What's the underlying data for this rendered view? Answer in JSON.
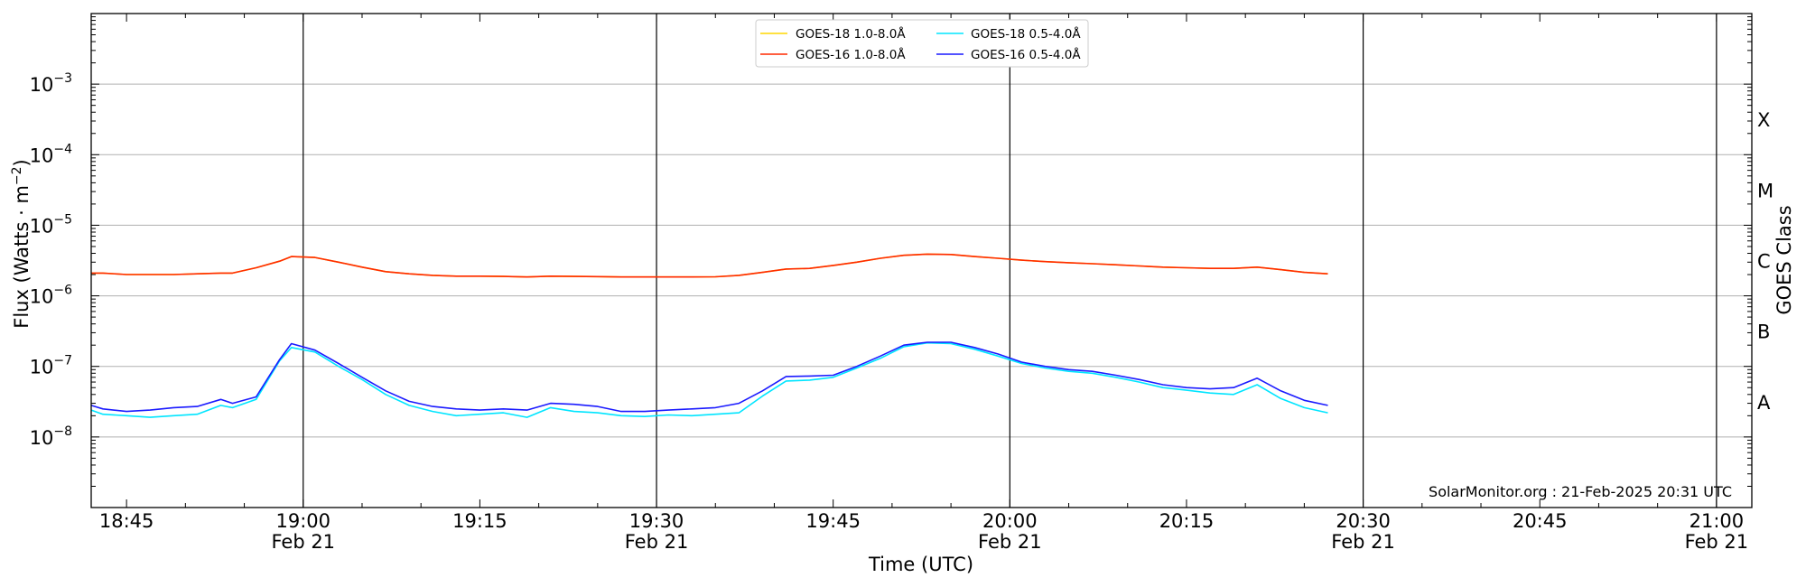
{
  "chart_data": {
    "type": "line",
    "xlabel": "Time (UTC)",
    "ylabel_main": "Flux (Watts · m",
    "ylabel_sup": "−2",
    "ylabel_close": ")",
    "right_label": "GOES Class",
    "credit": "SolarMonitor.org : 21-Feb-2025 20:31 UTC",
    "yscale": "log",
    "ylim": [
      1e-09,
      0.01
    ],
    "xlim": [
      "2025-02-21 18:42",
      "2025-02-21 21:03"
    ],
    "grid": "horizontal at decades, vertical at half-hours",
    "legend_position": "top-center",
    "x_ticks": [
      {
        "t": "2025-02-21 18:45",
        "line1": "18:45",
        "line2": ""
      },
      {
        "t": "2025-02-21 19:00",
        "line1": "19:00",
        "line2": "Feb 21"
      },
      {
        "t": "2025-02-21 19:15",
        "line1": "19:15",
        "line2": ""
      },
      {
        "t": "2025-02-21 19:30",
        "line1": "19:30",
        "line2": "Feb 21"
      },
      {
        "t": "2025-02-21 19:45",
        "line1": "19:45",
        "line2": ""
      },
      {
        "t": "2025-02-21 20:00",
        "line1": "20:00",
        "line2": "Feb 21"
      },
      {
        "t": "2025-02-21 20:15",
        "line1": "20:15",
        "line2": ""
      },
      {
        "t": "2025-02-21 20:30",
        "line1": "20:30",
        "line2": "Feb 21"
      },
      {
        "t": "2025-02-21 20:45",
        "line1": "20:45",
        "line2": ""
      },
      {
        "t": "2025-02-21 21:00",
        "line1": "21:00",
        "line2": "Feb 21"
      }
    ],
    "vertical_lines": [
      "2025-02-21 19:00",
      "2025-02-21 19:30",
      "2025-02-21 20:00",
      "2025-02-21 20:30",
      "2025-02-21 21:00"
    ],
    "y_ticks": [
      {
        "exp": -3,
        "base": "10",
        "sup": "−3"
      },
      {
        "exp": -4,
        "base": "10",
        "sup": "−4"
      },
      {
        "exp": -5,
        "base": "10",
        "sup": "−5"
      },
      {
        "exp": -6,
        "base": "10",
        "sup": "−6"
      },
      {
        "exp": -7,
        "base": "10",
        "sup": "−7"
      },
      {
        "exp": -8,
        "base": "10",
        "sup": "−8"
      }
    ],
    "goes_classes": [
      {
        "label": "A",
        "exp": -7.5
      },
      {
        "label": "B",
        "exp": -6.5
      },
      {
        "label": "C",
        "exp": -5.5
      },
      {
        "label": "M",
        "exp": -4.5
      },
      {
        "label": "X",
        "exp": -3.5
      }
    ],
    "x": [
      "18:42",
      "18:43",
      "18:45",
      "18:47",
      "18:49",
      "18:51",
      "18:53",
      "18:54",
      "18:56",
      "18:58",
      "18:59",
      "19:01",
      "19:03",
      "19:05",
      "19:07",
      "19:09",
      "19:11",
      "19:13",
      "19:15",
      "19:17",
      "19:19",
      "19:21",
      "19:23",
      "19:25",
      "19:27",
      "19:29",
      "19:31",
      "19:33",
      "19:35",
      "19:37",
      "19:39",
      "19:41",
      "19:43",
      "19:45",
      "19:47",
      "19:49",
      "19:51",
      "19:53",
      "19:55",
      "19:57",
      "19:59",
      "20:01",
      "20:03",
      "20:05",
      "20:07",
      "20:09",
      "20:11",
      "20:13",
      "20:15",
      "20:17",
      "20:19",
      "20:21",
      "20:23",
      "20:25",
      "20:27"
    ],
    "series": [
      {
        "name": "GOES-18 1.0-8.0Å",
        "color": "#ffd700",
        "values": [
          2.1e-06,
          2.1e-06,
          2e-06,
          2e-06,
          2e-06,
          2.05e-06,
          2.1e-06,
          2.1e-06,
          2.5e-06,
          3.1e-06,
          3.6e-06,
          3.5e-06,
          3e-06,
          2.55e-06,
          2.2e-06,
          2.05e-06,
          1.95e-06,
          1.9e-06,
          1.9e-06,
          1.88e-06,
          1.85e-06,
          1.9e-06,
          1.88e-06,
          1.87e-06,
          1.85e-06,
          1.85e-06,
          1.85e-06,
          1.85e-06,
          1.86e-06,
          1.95e-06,
          2.15e-06,
          2.4e-06,
          2.45e-06,
          2.7e-06,
          3e-06,
          3.4e-06,
          3.75e-06,
          3.9e-06,
          3.85e-06,
          3.6e-06,
          3.4e-06,
          3.2e-06,
          3.05e-06,
          2.95e-06,
          2.85e-06,
          2.75e-06,
          2.65e-06,
          2.55e-06,
          2.5e-06,
          2.45e-06,
          2.45e-06,
          2.55e-06,
          2.35e-06,
          2.15e-06,
          2.05e-06
        ]
      },
      {
        "name": "GOES-16 1.0-8.0Å",
        "color": "#ff2a00",
        "values": [
          2.1e-06,
          2.1e-06,
          2e-06,
          2e-06,
          2e-06,
          2.05e-06,
          2.1e-06,
          2.1e-06,
          2.5e-06,
          3.1e-06,
          3.6e-06,
          3.5e-06,
          3e-06,
          2.55e-06,
          2.2e-06,
          2.05e-06,
          1.95e-06,
          1.9e-06,
          1.9e-06,
          1.88e-06,
          1.85e-06,
          1.9e-06,
          1.88e-06,
          1.87e-06,
          1.85e-06,
          1.85e-06,
          1.85e-06,
          1.85e-06,
          1.86e-06,
          1.95e-06,
          2.15e-06,
          2.4e-06,
          2.45e-06,
          2.7e-06,
          3e-06,
          3.4e-06,
          3.75e-06,
          3.9e-06,
          3.85e-06,
          3.6e-06,
          3.4e-06,
          3.2e-06,
          3.05e-06,
          2.95e-06,
          2.85e-06,
          2.75e-06,
          2.65e-06,
          2.55e-06,
          2.5e-06,
          2.45e-06,
          2.45e-06,
          2.55e-06,
          2.35e-06,
          2.15e-06,
          2.05e-06
        ]
      },
      {
        "name": "GOES-18 0.5-4.0Å",
        "color": "#00e5ff",
        "values": [
          2.4e-08,
          2.1e-08,
          2e-08,
          1.9e-08,
          2e-08,
          2.1e-08,
          2.8e-08,
          2.6e-08,
          3.4e-08,
          1.2e-07,
          1.85e-07,
          1.6e-07,
          1e-07,
          6.5e-08,
          4e-08,
          2.8e-08,
          2.3e-08,
          2e-08,
          2.1e-08,
          2.2e-08,
          1.9e-08,
          2.6e-08,
          2.3e-08,
          2.2e-08,
          2e-08,
          1.95e-08,
          2.05e-08,
          2e-08,
          2.1e-08,
          2.2e-08,
          3.8e-08,
          6.2e-08,
          6.4e-08,
          7e-08,
          9.5e-08,
          1.3e-07,
          1.9e-07,
          2.15e-07,
          2.1e-07,
          1.75e-07,
          1.4e-07,
          1.1e-07,
          9.5e-08,
          8.5e-08,
          8e-08,
          7e-08,
          6e-08,
          5e-08,
          4.6e-08,
          4.2e-08,
          4e-08,
          5.5e-08,
          3.5e-08,
          2.6e-08,
          2.2e-08
        ]
      },
      {
        "name": "GOES-16 0.5-4.0Å",
        "color": "#1a1aff",
        "values": [
          2.8e-08,
          2.5e-08,
          2.3e-08,
          2.4e-08,
          2.6e-08,
          2.7e-08,
          3.4e-08,
          3e-08,
          3.7e-08,
          1.25e-07,
          2.1e-07,
          1.7e-07,
          1.1e-07,
          7e-08,
          4.5e-08,
          3.2e-08,
          2.7e-08,
          2.5e-08,
          2.4e-08,
          2.5e-08,
          2.4e-08,
          3e-08,
          2.9e-08,
          2.7e-08,
          2.3e-08,
          2.3e-08,
          2.4e-08,
          2.5e-08,
          2.6e-08,
          3e-08,
          4.5e-08,
          7.2e-08,
          7.3e-08,
          7.5e-08,
          1e-07,
          1.4e-07,
          2e-07,
          2.2e-07,
          2.2e-07,
          1.85e-07,
          1.5e-07,
          1.15e-07,
          1e-07,
          9e-08,
          8.5e-08,
          7.5e-08,
          6.5e-08,
          5.5e-08,
          5e-08,
          4.8e-08,
          5e-08,
          6.8e-08,
          4.5e-08,
          3.3e-08,
          2.8e-08
        ]
      }
    ]
  }
}
